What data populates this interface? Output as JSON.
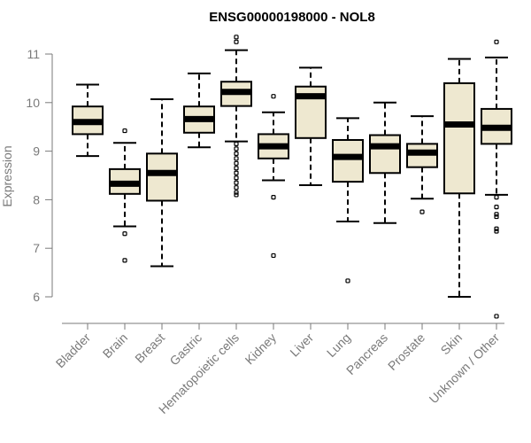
{
  "chart_data": {
    "type": "boxplot",
    "title": "ENSG00000198000 - NOL8",
    "xlabel": "",
    "ylabel": "Expression",
    "ylim": [
      5.45,
      11.45
    ],
    "yticks": [
      6,
      7,
      8,
      9,
      10,
      11
    ],
    "categories": [
      "Bladder",
      "Brain",
      "Breast",
      "Gastric",
      "Hematopoietic cells",
      "Kidney",
      "Liver",
      "Lung",
      "Pancreas",
      "Prostate",
      "Skin",
      "Unknown / Other"
    ],
    "boxes": [
      {
        "name": "Bladder",
        "whisker_low": 8.9,
        "q1": 9.35,
        "median": 9.6,
        "q3": 9.92,
        "whisker_high": 10.37,
        "outliers": []
      },
      {
        "name": "Brain",
        "whisker_low": 7.45,
        "q1": 8.12,
        "median": 8.33,
        "q3": 8.63,
        "whisker_high": 9.17,
        "outliers": [
          9.42,
          7.3,
          6.75
        ]
      },
      {
        "name": "Breast",
        "whisker_low": 6.63,
        "q1": 7.98,
        "median": 8.55,
        "q3": 8.95,
        "whisker_high": 10.07,
        "outliers": []
      },
      {
        "name": "Gastric",
        "whisker_low": 9.08,
        "q1": 9.38,
        "median": 9.66,
        "q3": 9.92,
        "whisker_high": 10.6,
        "outliers": []
      },
      {
        "name": "Hematopoietic cells",
        "whisker_low": 9.2,
        "q1": 9.93,
        "median": 10.22,
        "q3": 10.43,
        "whisker_high": 11.08,
        "outliers": [
          11.35,
          11.25,
          9.15,
          9.05,
          8.95,
          8.85,
          8.75,
          8.65,
          8.55,
          8.45,
          8.35,
          8.25,
          8.15,
          8.1
        ]
      },
      {
        "name": "Kidney",
        "whisker_low": 8.4,
        "q1": 8.85,
        "median": 9.1,
        "q3": 9.35,
        "whisker_high": 9.8,
        "outliers": [
          10.13,
          8.05,
          6.85
        ]
      },
      {
        "name": "Liver",
        "whisker_low": 8.3,
        "q1": 9.27,
        "median": 10.13,
        "q3": 10.33,
        "whisker_high": 10.72,
        "outliers": []
      },
      {
        "name": "Lung",
        "whisker_low": 7.55,
        "q1": 8.37,
        "median": 8.88,
        "q3": 9.23,
        "whisker_high": 9.68,
        "outliers": [
          6.33
        ]
      },
      {
        "name": "Pancreas",
        "whisker_low": 7.52,
        "q1": 8.55,
        "median": 9.1,
        "q3": 9.33,
        "whisker_high": 10.0,
        "outliers": []
      },
      {
        "name": "Prostate",
        "whisker_low": 8.02,
        "q1": 8.67,
        "median": 8.97,
        "q3": 9.15,
        "whisker_high": 9.72,
        "outliers": [
          7.75
        ]
      },
      {
        "name": "Skin",
        "whisker_low": 6.0,
        "q1": 8.13,
        "median": 9.55,
        "q3": 10.4,
        "whisker_high": 10.9,
        "outliers": []
      },
      {
        "name": "Unknown / Other",
        "whisker_low": 8.1,
        "q1": 9.15,
        "median": 9.48,
        "q3": 9.87,
        "whisker_high": 10.93,
        "outliers": [
          11.25,
          8.05,
          7.85,
          7.7,
          7.65,
          7.4,
          7.35,
          5.6
        ]
      }
    ]
  }
}
